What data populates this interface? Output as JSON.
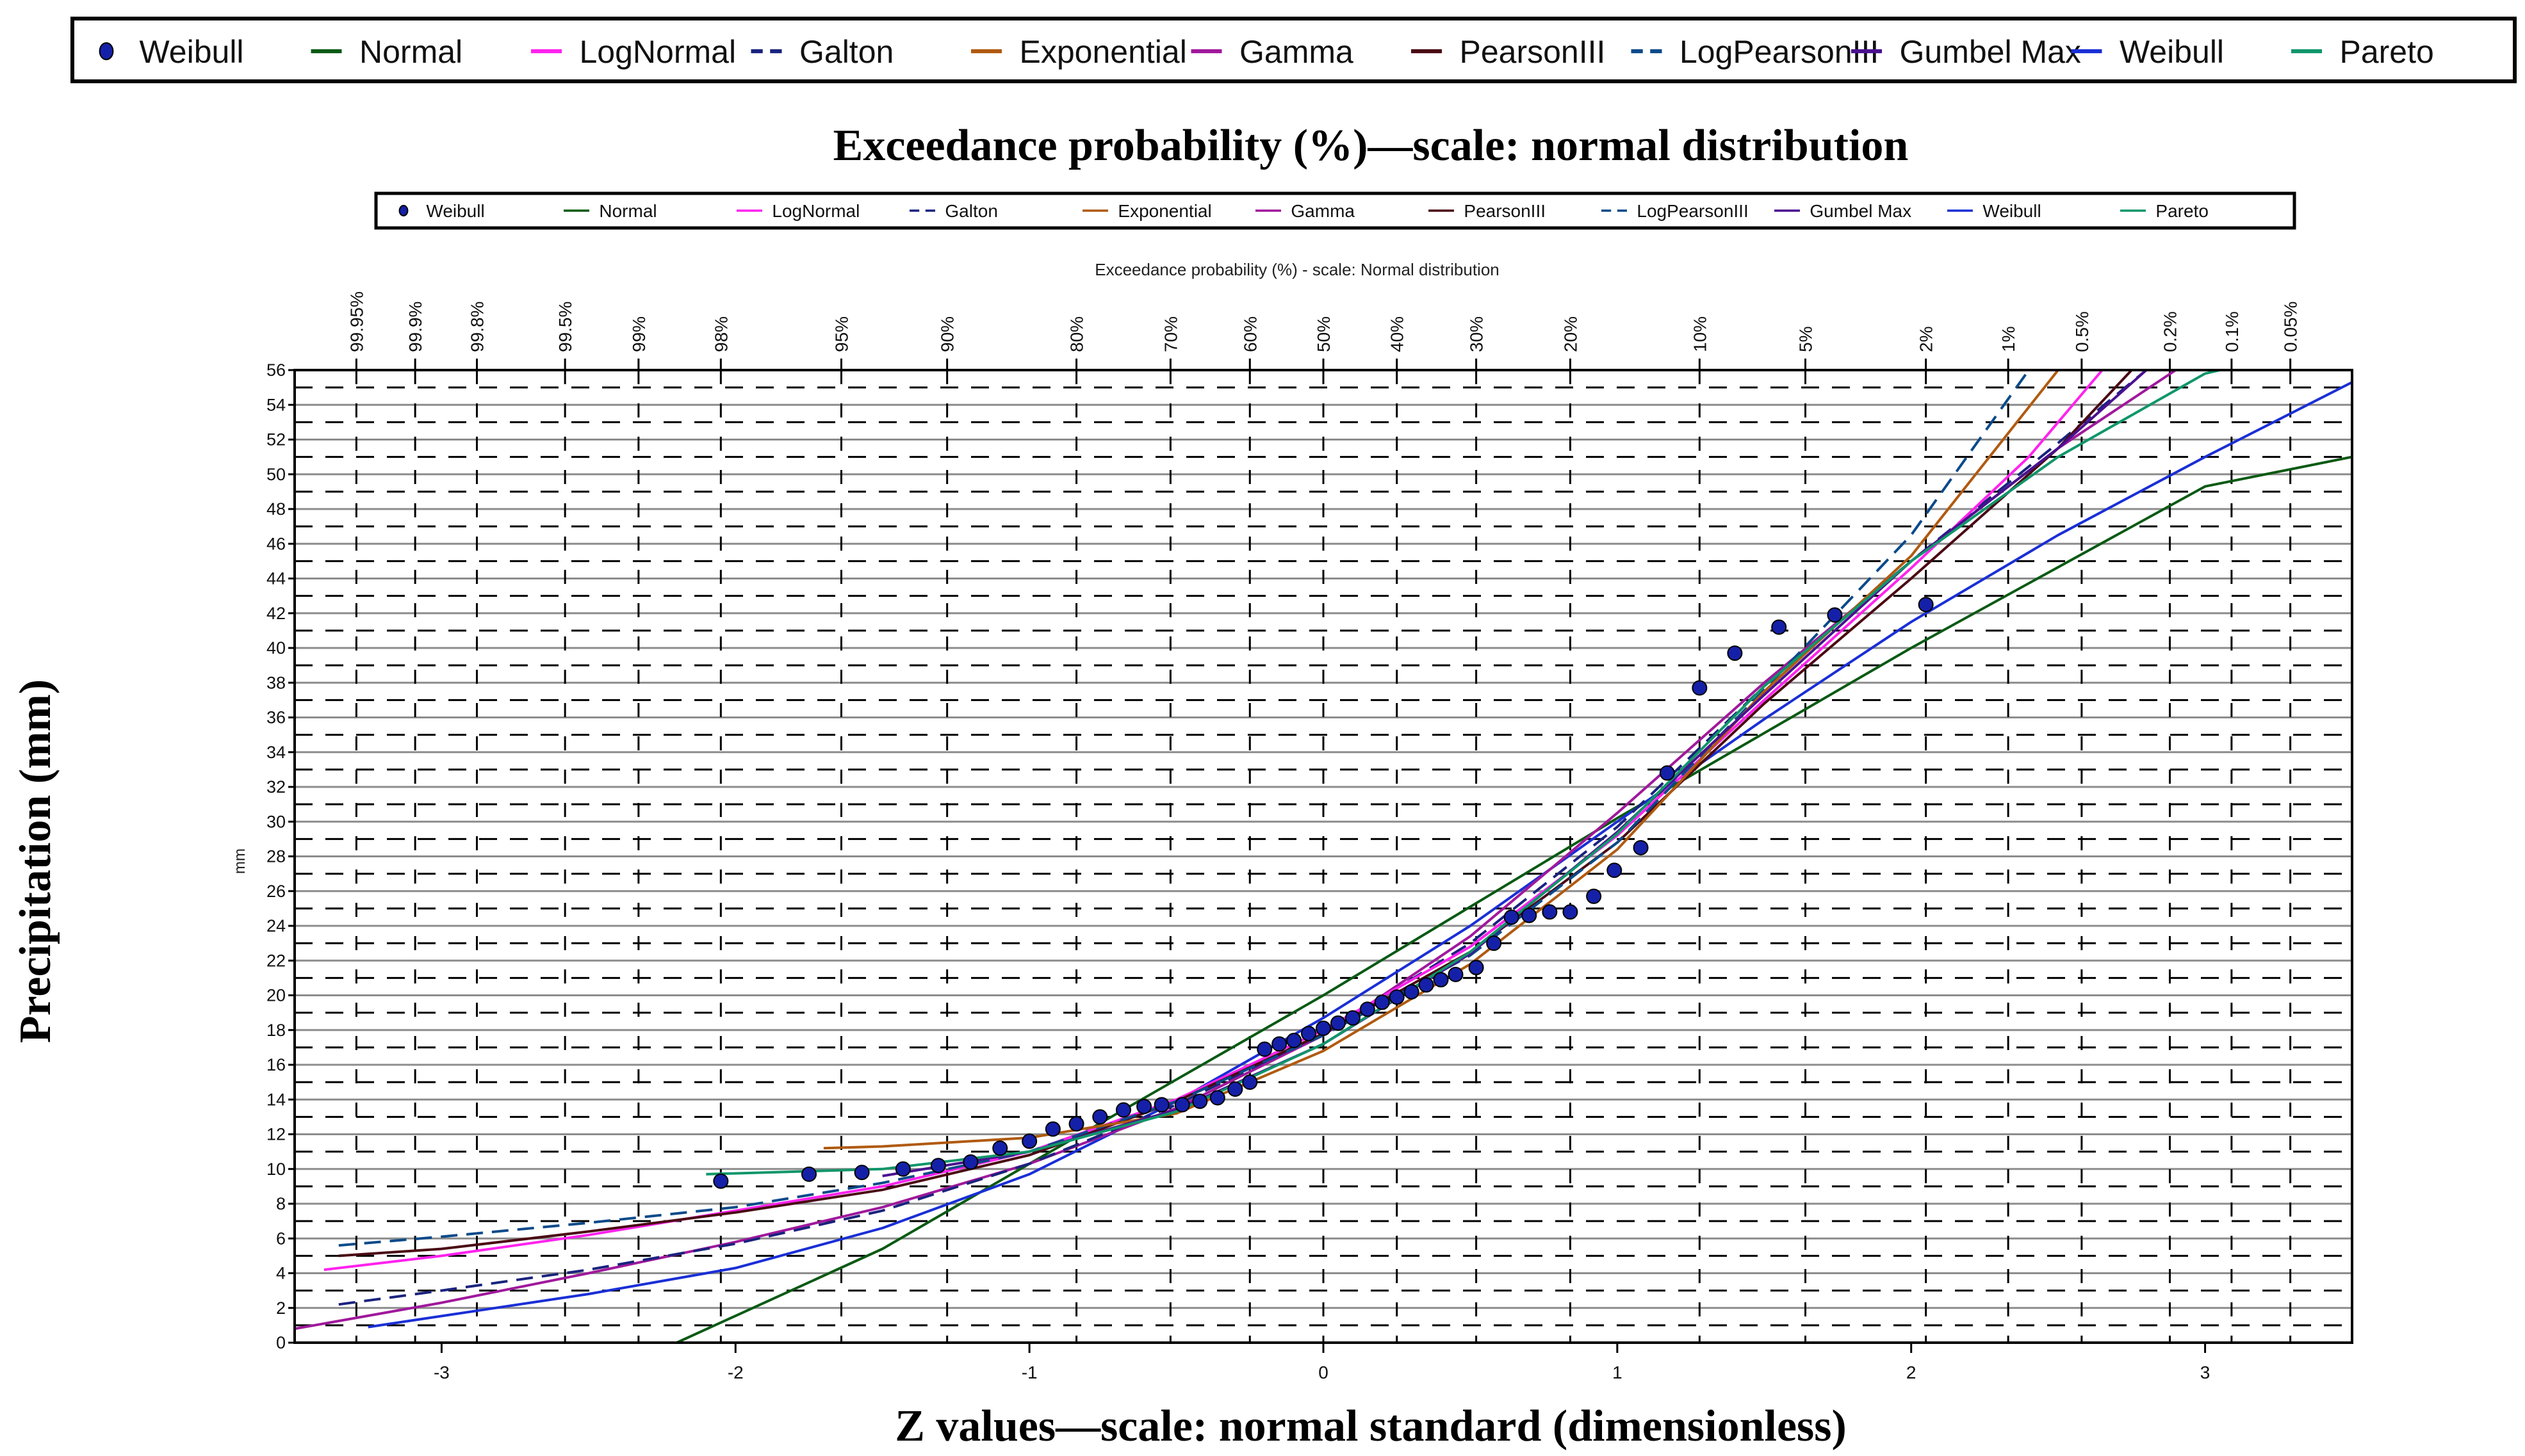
{
  "legend_outer": [
    {
      "name": "Weibull",
      "kind": "marker",
      "color": "#1a2fd6"
    },
    {
      "name": "Normal",
      "kind": "solid",
      "color": "#0a5a14"
    },
    {
      "name": "LogNormal",
      "kind": "solid",
      "color": "#ff22ee"
    },
    {
      "name": "Galton",
      "kind": "dashed",
      "color": "#1a237e"
    },
    {
      "name": "Exponential",
      "kind": "solid",
      "color": "#b05a10"
    },
    {
      "name": "Gamma",
      "kind": "solid",
      "color": "#a0189c"
    },
    {
      "name": "PearsonIII",
      "kind": "solid",
      "color": "#4a0a14"
    },
    {
      "name": "LogPearsonIII",
      "kind": "dashed",
      "color": "#0a4a8a"
    },
    {
      "name": "Gumbel Max",
      "kind": "solid",
      "color": "#4a1090"
    },
    {
      "name": "Weibull",
      "kind": "solid",
      "color": "#1a2fd6"
    },
    {
      "name": "Pareto",
      "kind": "solid",
      "color": "#10966a"
    }
  ],
  "chart_data": {
    "type": "line",
    "title": "Exceedance probability (%)—scale: normal distribution",
    "inner_title": "Exceedance probability (%) - scale: Normal distribution",
    "xlabel": "Z values—scale: normal standard (dimensionless)",
    "ylabel": "Precipitation (mm)",
    "y_unit": "mm",
    "xlim": [
      -3.5,
      3.5
    ],
    "ylim": [
      0,
      56
    ],
    "x_ticks": [
      -3,
      -2,
      -1,
      0,
      1,
      2,
      3
    ],
    "y_ticks": [
      0,
      2,
      4,
      6,
      8,
      10,
      12,
      14,
      16,
      18,
      20,
      22,
      24,
      26,
      28,
      30,
      32,
      34,
      36,
      38,
      40,
      42,
      44,
      46,
      48,
      50,
      52,
      54,
      56
    ],
    "prob_ticks": [
      {
        "label": "99.95%",
        "z": -3.29
      },
      {
        "label": "99.9%",
        "z": -3.09
      },
      {
        "label": "99.8%",
        "z": -2.88
      },
      {
        "label": "99.5%",
        "z": -2.58
      },
      {
        "label": "99%",
        "z": -2.33
      },
      {
        "label": "98%",
        "z": -2.05
      },
      {
        "label": "95%",
        "z": -1.64
      },
      {
        "label": "90%",
        "z": -1.28
      },
      {
        "label": "80%",
        "z": -0.84
      },
      {
        "label": "70%",
        "z": -0.52
      },
      {
        "label": "60%",
        "z": -0.25
      },
      {
        "label": "50%",
        "z": 0
      },
      {
        "label": "40%",
        "z": 0.25
      },
      {
        "label": "30%",
        "z": 0.52
      },
      {
        "label": "20%",
        "z": 0.84
      },
      {
        "label": "10%",
        "z": 1.28
      },
      {
        "label": "5%",
        "z": 1.64
      },
      {
        "label": "2%",
        "z": 2.05
      },
      {
        "label": "1%",
        "z": 2.33
      },
      {
        "label": "0.5%",
        "z": 2.58
      },
      {
        "label": "0.2%",
        "z": 2.88
      },
      {
        "label": "0.1%",
        "z": 3.09
      },
      {
        "label": "0.05%",
        "z": 3.29
      }
    ],
    "observed": {
      "name": "Weibull",
      "points": [
        [
          -2.05,
          9.3
        ],
        [
          -1.75,
          9.7
        ],
        [
          -1.57,
          9.8
        ],
        [
          -1.43,
          10.0
        ],
        [
          -1.31,
          10.2
        ],
        [
          -1.2,
          10.4
        ],
        [
          -1.1,
          11.2
        ],
        [
          -1.0,
          11.6
        ],
        [
          -0.92,
          12.3
        ],
        [
          -0.84,
          12.6
        ],
        [
          -0.76,
          13.0
        ],
        [
          -0.68,
          13.4
        ],
        [
          -0.61,
          13.6
        ],
        [
          -0.55,
          13.7
        ],
        [
          -0.48,
          13.7
        ],
        [
          -0.42,
          13.9
        ],
        [
          -0.36,
          14.1
        ],
        [
          -0.3,
          14.6
        ],
        [
          -0.25,
          15.0
        ],
        [
          -0.2,
          16.9
        ],
        [
          -0.15,
          17.2
        ],
        [
          -0.1,
          17.4
        ],
        [
          -0.05,
          17.8
        ],
        [
          0.0,
          18.1
        ],
        [
          0.05,
          18.4
        ],
        [
          0.1,
          18.7
        ],
        [
          0.15,
          19.2
        ],
        [
          0.2,
          19.6
        ],
        [
          0.25,
          19.9
        ],
        [
          0.3,
          20.2
        ],
        [
          0.35,
          20.6
        ],
        [
          0.4,
          20.9
        ],
        [
          0.45,
          21.2
        ],
        [
          0.52,
          21.6
        ],
        [
          0.58,
          23.0
        ],
        [
          0.64,
          24.5
        ],
        [
          0.7,
          24.6
        ],
        [
          0.77,
          24.8
        ],
        [
          0.84,
          24.8
        ],
        [
          0.92,
          25.7
        ],
        [
          0.99,
          27.2
        ],
        [
          1.08,
          28.5
        ],
        [
          1.17,
          32.8
        ],
        [
          1.28,
          37.7
        ],
        [
          1.4,
          39.7
        ],
        [
          1.55,
          41.2
        ],
        [
          1.74,
          41.9
        ],
        [
          2.05,
          42.5
        ]
      ]
    },
    "series": [
      {
        "name": "Normal",
        "dash": false,
        "color": "#0a5a14",
        "points": [
          [
            -2.2,
            0
          ],
          [
            -1.5,
            5.4
          ],
          [
            -1.0,
            10.3
          ],
          [
            0,
            20.0
          ],
          [
            1,
            30.2
          ],
          [
            2,
            40.0
          ],
          [
            3,
            49.3
          ],
          [
            3.5,
            51.0
          ]
        ]
      },
      {
        "name": "Weibull",
        "dash": false,
        "color": "#1a2fd6",
        "points": [
          [
            -3.25,
            0.9
          ],
          [
            -2.5,
            2.8
          ],
          [
            -2.0,
            4.3
          ],
          [
            -1.5,
            6.6
          ],
          [
            -1.0,
            9.7
          ],
          [
            -0.5,
            13.9
          ],
          [
            0,
            18.7
          ],
          [
            0.5,
            24.0
          ],
          [
            1,
            30.0
          ],
          [
            1.5,
            35.9
          ],
          [
            2,
            41.5
          ],
          [
            2.5,
            46.5
          ],
          [
            3,
            51.0
          ],
          [
            3.5,
            55.3
          ]
        ]
      },
      {
        "name": "Gamma",
        "dash": false,
        "color": "#a0189c",
        "points": [
          [
            -3.5,
            0.8
          ],
          [
            -3.0,
            2.3
          ],
          [
            -2.5,
            4.0
          ],
          [
            -2.0,
            5.8
          ],
          [
            -1.5,
            7.8
          ],
          [
            -1.0,
            10.3
          ],
          [
            -0.5,
            13.5
          ],
          [
            0,
            17.7
          ],
          [
            0.5,
            23.4
          ],
          [
            1,
            30.5
          ],
          [
            1.5,
            38.0
          ],
          [
            2,
            45.0
          ],
          [
            2.5,
            51.5
          ],
          [
            2.9,
            56.0
          ]
        ]
      },
      {
        "name": "Galton",
        "dash": true,
        "color": "#1a237e",
        "points": [
          [
            -3.35,
            2.2
          ],
          [
            -3.0,
            3.0
          ],
          [
            -2.5,
            4.2
          ],
          [
            -2.0,
            5.7
          ],
          [
            -1.5,
            7.6
          ],
          [
            -1.0,
            10.3
          ],
          [
            -0.5,
            13.7
          ],
          [
            0,
            17.8
          ],
          [
            0.5,
            23.0
          ],
          [
            1,
            29.7
          ],
          [
            1.5,
            37.8
          ],
          [
            2,
            45.0
          ],
          [
            2.5,
            51.8
          ],
          [
            2.8,
            56.0
          ]
        ]
      },
      {
        "name": "LogNormal",
        "dash": false,
        "color": "#ff22ee",
        "points": [
          [
            -3.4,
            4.2
          ],
          [
            -3.0,
            5.0
          ],
          [
            -2.5,
            6.2
          ],
          [
            -2.0,
            7.6
          ],
          [
            -1.5,
            9.0
          ],
          [
            -1.0,
            11.0
          ],
          [
            -0.5,
            14.0
          ],
          [
            0,
            18.0
          ],
          [
            0.5,
            22.8
          ],
          [
            1,
            29.2
          ],
          [
            1.5,
            37.0
          ],
          [
            2,
            44.6
          ],
          [
            2.4,
            51.0
          ],
          [
            2.65,
            56.0
          ]
        ]
      },
      {
        "name": "PearsonIII",
        "dash": false,
        "color": "#4a0a14",
        "points": [
          [
            -3.35,
            5.0
          ],
          [
            -3.0,
            5.4
          ],
          [
            -2.5,
            6.4
          ],
          [
            -2.0,
            7.5
          ],
          [
            -1.5,
            8.8
          ],
          [
            -1.0,
            10.8
          ],
          [
            -0.5,
            13.9
          ],
          [
            0,
            17.8
          ],
          [
            0.5,
            22.5
          ],
          [
            1,
            28.8
          ],
          [
            1.5,
            36.8
          ],
          [
            2,
            44.0
          ],
          [
            2.5,
            51.5
          ],
          [
            2.75,
            56.0
          ]
        ]
      },
      {
        "name": "LogPearsonIII",
        "dash": true,
        "color": "#0a4a8a",
        "points": [
          [
            -3.35,
            5.6
          ],
          [
            -3.0,
            6.1
          ],
          [
            -2.5,
            6.9
          ],
          [
            -2.0,
            7.8
          ],
          [
            -1.5,
            9.2
          ],
          [
            -1.0,
            11.0
          ],
          [
            -0.5,
            13.9
          ],
          [
            0,
            17.7
          ],
          [
            0.5,
            22.3
          ],
          [
            1,
            28.8
          ],
          [
            1.5,
            37.6
          ],
          [
            2,
            46.5
          ],
          [
            2.4,
            56.0
          ]
        ]
      },
      {
        "name": "Exponential",
        "dash": false,
        "color": "#b05a10",
        "points": [
          [
            -1.7,
            11.2
          ],
          [
            -1.5,
            11.3
          ],
          [
            -1.0,
            11.8
          ],
          [
            -0.5,
            13.2
          ],
          [
            0,
            16.8
          ],
          [
            0.5,
            21.8
          ],
          [
            1,
            28.4
          ],
          [
            1.5,
            37.5
          ],
          [
            2,
            45.3
          ],
          [
            2.5,
            56.0
          ]
        ]
      },
      {
        "name": "Gumbel Max",
        "dash": false,
        "color": "#4a1090",
        "points": [
          [
            -1.5,
            9.6
          ],
          [
            -1.0,
            11.0
          ],
          [
            -0.5,
            13.4
          ],
          [
            0,
            17.2
          ],
          [
            0.5,
            22.4
          ],
          [
            1,
            29.4
          ],
          [
            1.5,
            37.3
          ],
          [
            2,
            45.0
          ],
          [
            2.5,
            51.5
          ],
          [
            2.8,
            56.0
          ]
        ]
      },
      {
        "name": "Pareto",
        "dash": false,
        "color": "#10966a",
        "points": [
          [
            -2.1,
            9.7
          ],
          [
            -1.5,
            10.0
          ],
          [
            -1.0,
            11.0
          ],
          [
            -0.5,
            13.3
          ],
          [
            0,
            17.2
          ],
          [
            0.5,
            22.5
          ],
          [
            1,
            29.3
          ],
          [
            1.5,
            37.8
          ],
          [
            2,
            45.0
          ],
          [
            2.5,
            51.0
          ],
          [
            3,
            55.8
          ],
          [
            3.05,
            56.0
          ]
        ]
      }
    ]
  }
}
